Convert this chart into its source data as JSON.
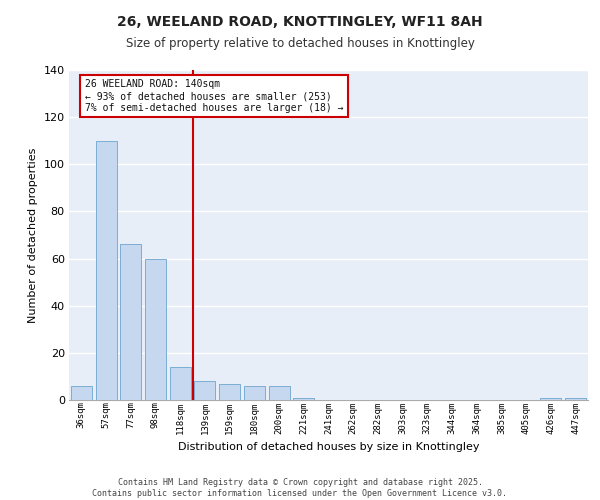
{
  "title": "26, WEELAND ROAD, KNOTTINGLEY, WF11 8AH",
  "subtitle": "Size of property relative to detached houses in Knottingley",
  "xlabel": "Distribution of detached houses by size in Knottingley",
  "ylabel": "Number of detached properties",
  "categories": [
    "36sqm",
    "57sqm",
    "77sqm",
    "98sqm",
    "118sqm",
    "139sqm",
    "159sqm",
    "180sqm",
    "200sqm",
    "221sqm",
    "241sqm",
    "262sqm",
    "282sqm",
    "303sqm",
    "323sqm",
    "344sqm",
    "364sqm",
    "385sqm",
    "405sqm",
    "426sqm",
    "447sqm"
  ],
  "values": [
    6,
    110,
    66,
    60,
    14,
    8,
    7,
    6,
    6,
    1,
    0,
    0,
    0,
    0,
    0,
    0,
    0,
    0,
    0,
    1,
    1
  ],
  "bar_color": "#c5d8f0",
  "bar_edge_color": "#7badd4",
  "vline_color": "#cc0000",
  "annotation_title": "26 WEELAND ROAD: 140sqm",
  "annotation_line1": "← 93% of detached houses are smaller (253)",
  "annotation_line2": "7% of semi-detached houses are larger (18) →",
  "annotation_box_color": "#cc0000",
  "ylim": [
    0,
    140
  ],
  "yticks": [
    0,
    20,
    40,
    60,
    80,
    100,
    120,
    140
  ],
  "footer1": "Contains HM Land Registry data © Crown copyright and database right 2025.",
  "footer2": "Contains public sector information licensed under the Open Government Licence v3.0.",
  "bg_color": "#e8eef8",
  "grid_color": "#ffffff"
}
